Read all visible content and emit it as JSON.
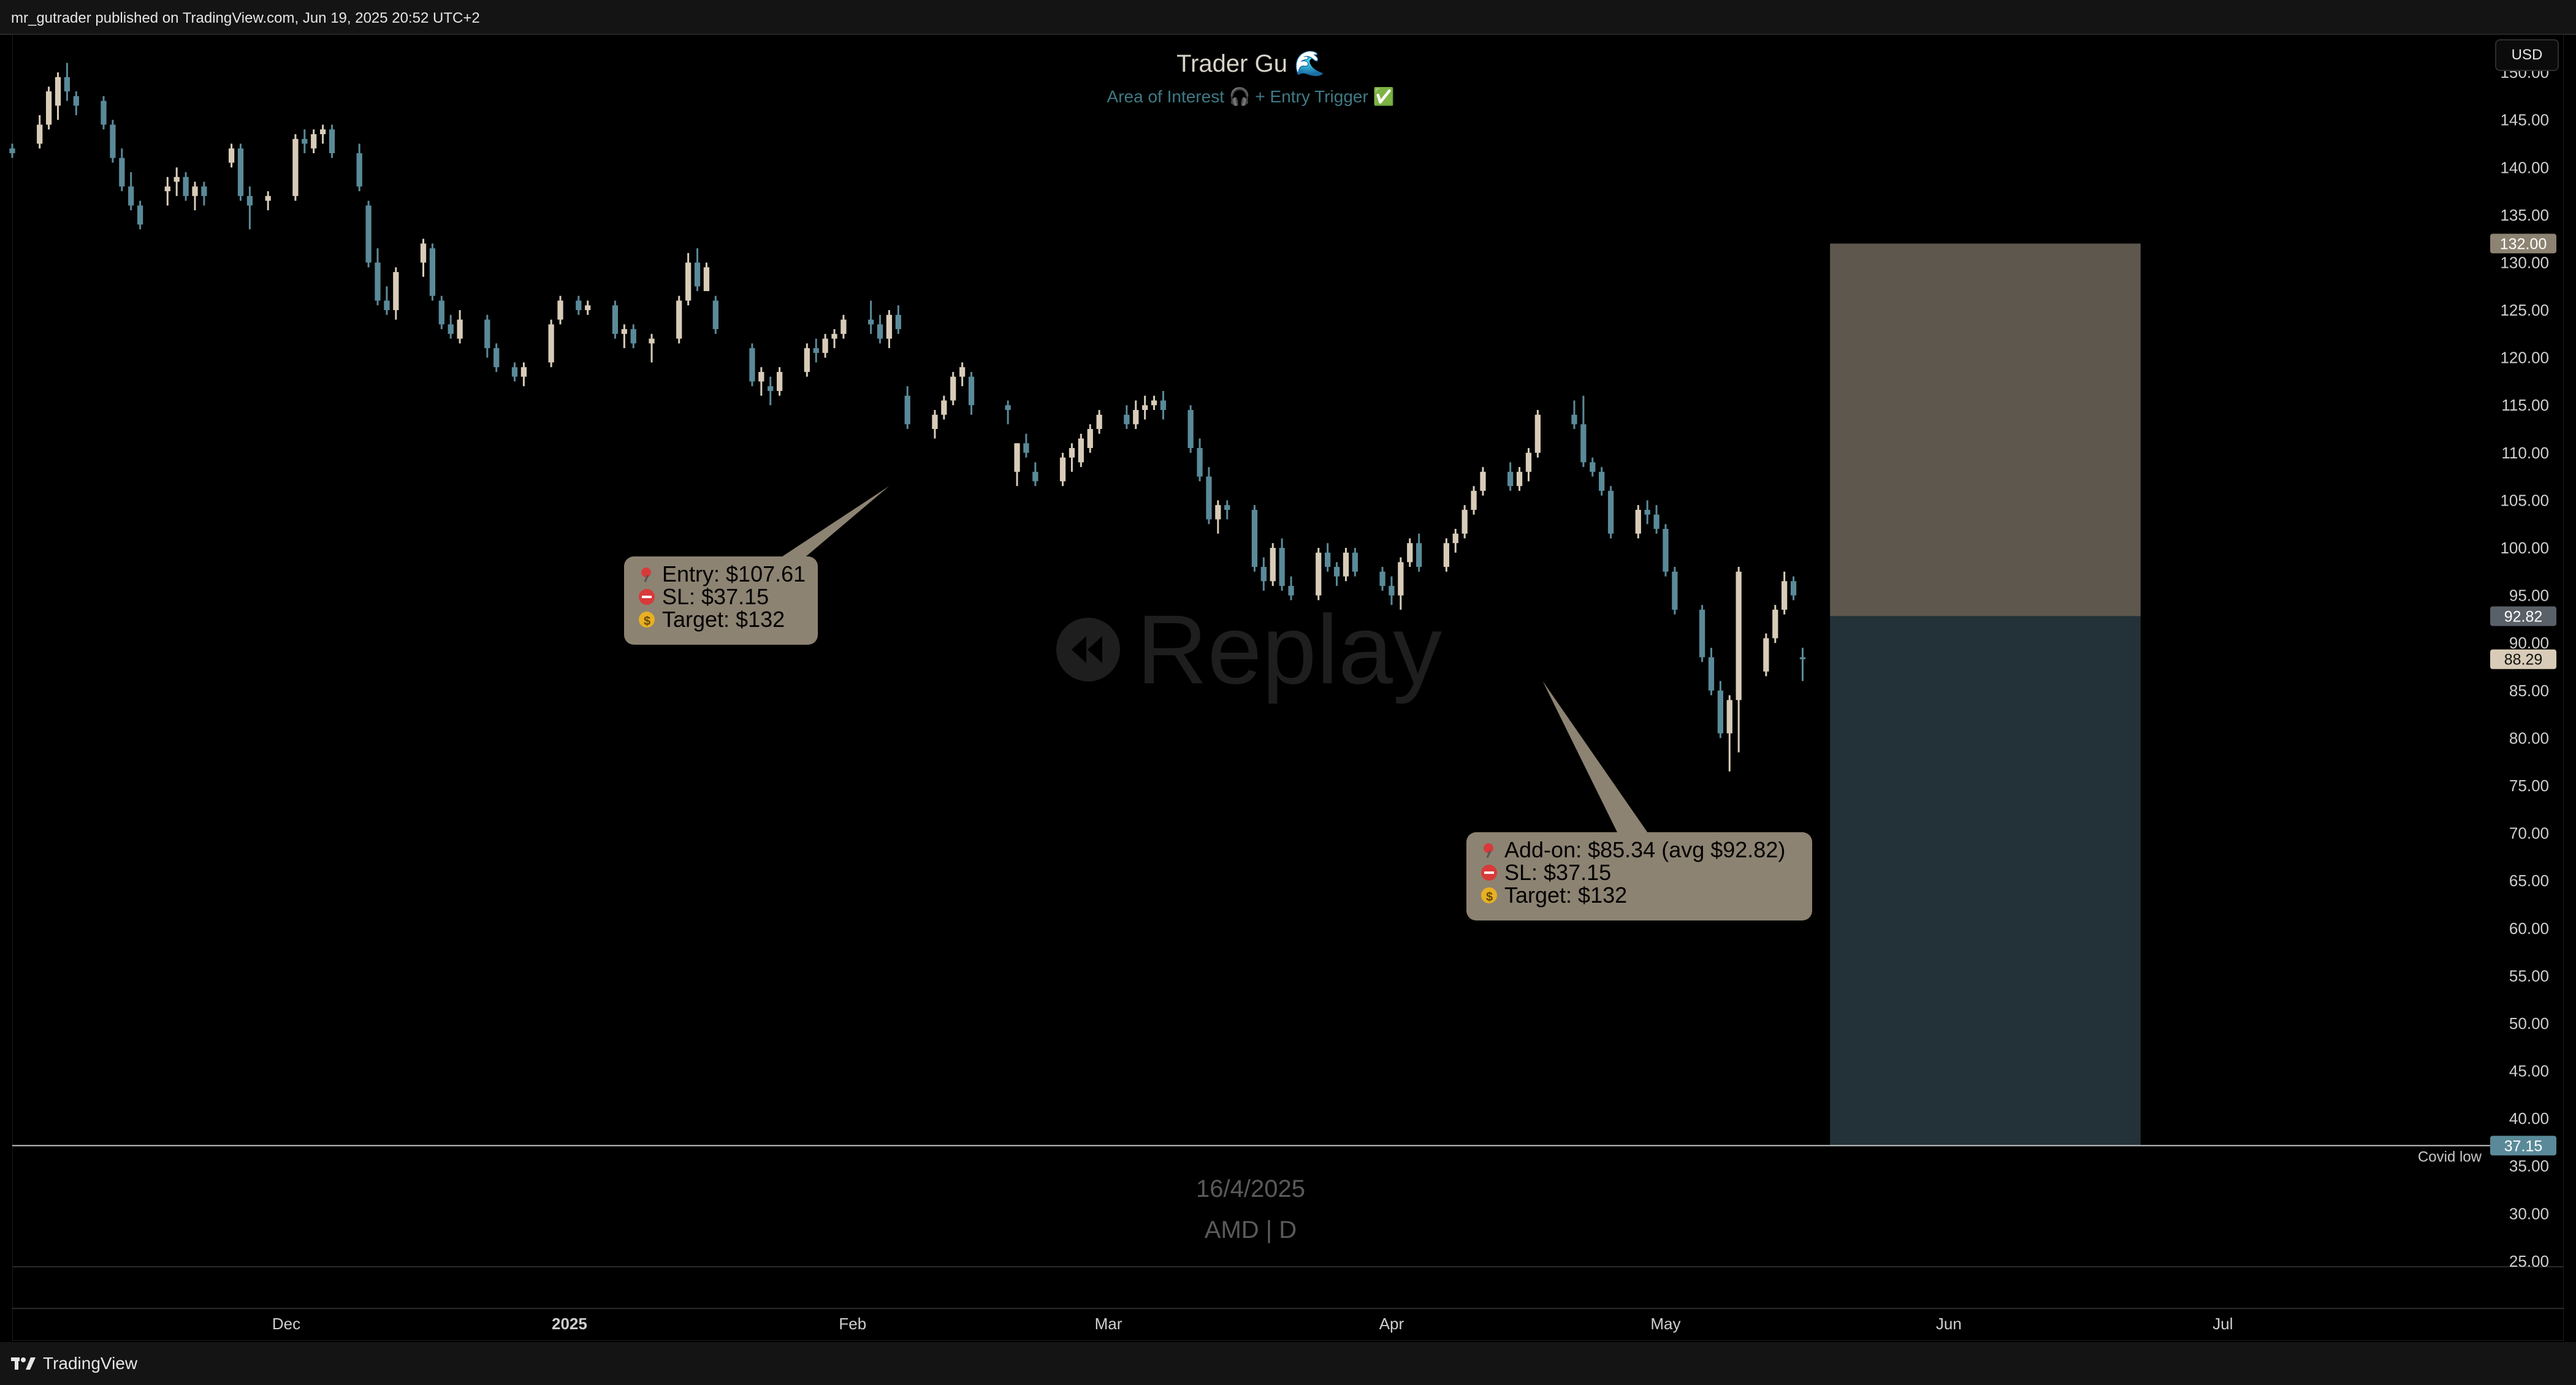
{
  "header": {
    "publish_info": "mr_gutrader published on TradingView.com, Jun 19, 2025 20:52 UTC+2"
  },
  "footer": {
    "brand": "TradingView"
  },
  "toolbar": {
    "currency": "USD"
  },
  "chart_title": "Trader Gu 🌊",
  "chart_subtitle": "Area of Interest 🎧 + Entry Trigger ✅",
  "watermark": {
    "date": "16/4/2025",
    "symbol": "AMD | D",
    "replay": "Replay"
  },
  "annotations": {
    "entry_note": {
      "lines": [
        "Entry: $107.61",
        "SL: $37.15",
        "Target: $132"
      ],
      "icons": [
        "pushpin-icon",
        "no-entry-icon",
        "money-bag-icon"
      ],
      "anchor": {
        "date": "2025-02-05",
        "price": 106.5
      }
    },
    "addon_note": {
      "lines": [
        "Add-on: $85.34 (avg $92.82)",
        "SL: $37.15",
        "Target: $132"
      ],
      "icons": [
        "pushpin-icon",
        "no-entry-icon",
        "money-bag-icon"
      ],
      "anchor": {
        "date": "2025-04-17",
        "price": 86.0
      }
    },
    "covid_low_label": "Covid low"
  },
  "colors": {
    "up": "#d8ccb8",
    "down": "#5a8a99",
    "target_zone": "#5d574d",
    "stop_zone": "#233238",
    "callout": "#8d8372",
    "covid_line": "#c8c8c8"
  },
  "chart_data": {
    "type": "candlestick",
    "symbol": "AMD",
    "timeframe": "D",
    "currency": "USD",
    "y_axis": {
      "range": [
        21.0,
        154.0
      ],
      "ticks": [
        150,
        145,
        140,
        135,
        130,
        125,
        120,
        115,
        110,
        105,
        100,
        95,
        90,
        85,
        80,
        75,
        70,
        65,
        60,
        55,
        50,
        45,
        40,
        35,
        30,
        25
      ],
      "tick_labels": [
        "150.00",
        "145.00",
        "140.00",
        "135.00",
        "130.00",
        "125.00",
        "120.00",
        "115.00",
        "110.00",
        "105.00",
        "100.00",
        "95.00",
        "90.00",
        "85.00",
        "80.00",
        "75.00",
        "70.00",
        "65.00",
        "60.00",
        "55.00",
        "50.00",
        "45.00",
        "40.00",
        "35.00",
        "30.00",
        "25.00"
      ]
    },
    "x_axis": {
      "range": [
        "2024-11-01",
        "2025-07-30"
      ],
      "tick_dates": [
        "2024-12-01",
        "2025-01-01",
        "2025-02-01",
        "2025-03-01",
        "2025-04-01",
        "2025-05-01",
        "2025-06-01",
        "2025-07-01"
      ],
      "tick_labels": [
        "Dec",
        "2025",
        "Feb",
        "Mar",
        "Apr",
        "May",
        "Jun",
        "Jul"
      ],
      "bold_labels": [
        "2025"
      ]
    },
    "price_labels": [
      {
        "value": "132.00",
        "price": 132.0,
        "color": "#8d8372"
      },
      {
        "value": "92.82",
        "price": 92.82,
        "color": "#5a6068"
      },
      {
        "value": "88.29",
        "price": 88.29,
        "color": "#d8ccb8"
      },
      {
        "value": "37.15",
        "price": 37.15,
        "color": "#5a8a99"
      }
    ],
    "position": {
      "start": "2025-05-19",
      "end": "2025-06-22",
      "entry": 92.82,
      "target": 132.0,
      "stop": 37.15
    },
    "horizontal_line": {
      "price": 37.15,
      "label": "Covid low"
    },
    "candles": [
      [
        "2024-11-01",
        142.0,
        142.5,
        141.0,
        141.5
      ],
      [
        "2024-11-04",
        142.5,
        145.5,
        142.0,
        144.5
      ],
      [
        "2024-11-05",
        144.5,
        148.5,
        144.0,
        148.0
      ],
      [
        "2024-11-06",
        146.5,
        150.0,
        145.0,
        149.5
      ],
      [
        "2024-11-07",
        149.5,
        151.0,
        147.0,
        148.0
      ],
      [
        "2024-11-08",
        147.5,
        148.0,
        145.5,
        146.5
      ],
      [
        "2024-11-11",
        147.0,
        147.5,
        144.0,
        144.5
      ],
      [
        "2024-11-12",
        144.5,
        145.0,
        140.5,
        141.0
      ],
      [
        "2024-11-13",
        141.0,
        142.0,
        137.5,
        138.0
      ],
      [
        "2024-11-14",
        138.0,
        139.5,
        135.5,
        136.0
      ],
      [
        "2024-11-15",
        136.0,
        136.5,
        133.5,
        134.0
      ],
      [
        "2024-11-18",
        137.5,
        139.0,
        136.0,
        138.0
      ],
      [
        "2024-11-19",
        138.5,
        140.0,
        137.0,
        139.0
      ],
      [
        "2024-11-20",
        139.0,
        139.5,
        136.5,
        137.0
      ],
      [
        "2024-11-21",
        137.0,
        138.5,
        135.5,
        138.0
      ],
      [
        "2024-11-22",
        138.0,
        138.5,
        136.0,
        137.0
      ],
      [
        "2024-11-25",
        140.5,
        142.5,
        140.0,
        142.0
      ],
      [
        "2024-11-26",
        142.0,
        142.5,
        136.5,
        137.0
      ],
      [
        "2024-11-27",
        137.0,
        138.0,
        133.5,
        136.0
      ],
      [
        "2024-11-29",
        136.5,
        137.5,
        135.5,
        137.0
      ],
      [
        "2024-12-02",
        137.0,
        143.5,
        136.5,
        143.0
      ],
      [
        "2024-12-03",
        143.0,
        144.0,
        141.5,
        142.5
      ],
      [
        "2024-12-04",
        142.0,
        144.0,
        141.5,
        143.5
      ],
      [
        "2024-12-05",
        143.5,
        144.5,
        142.5,
        144.0
      ],
      [
        "2024-12-06",
        144.0,
        144.5,
        141.0,
        141.5
      ],
      [
        "2024-12-09",
        141.5,
        142.5,
        137.5,
        138.0
      ],
      [
        "2024-12-10",
        136.0,
        136.5,
        129.5,
        130.0
      ],
      [
        "2024-12-11",
        130.0,
        131.5,
        125.5,
        126.0
      ],
      [
        "2024-12-12",
        126.0,
        127.5,
        124.5,
        125.0
      ],
      [
        "2024-12-13",
        125.0,
        129.5,
        124.0,
        129.0
      ],
      [
        "2024-12-16",
        130.0,
        132.5,
        128.5,
        132.0
      ],
      [
        "2024-12-17",
        131.5,
        132.0,
        126.0,
        126.5
      ],
      [
        "2024-12-18",
        126.0,
        126.5,
        123.0,
        123.5
      ],
      [
        "2024-12-19",
        123.5,
        124.5,
        122.0,
        122.5
      ],
      [
        "2024-12-20",
        122.0,
        125.0,
        121.5,
        124.0
      ],
      [
        "2024-12-23",
        124.0,
        124.5,
        120.0,
        121.0
      ],
      [
        "2024-12-24",
        121.0,
        121.5,
        118.5,
        119.0
      ],
      [
        "2024-12-26",
        119.0,
        119.5,
        117.5,
        118.0
      ],
      [
        "2024-12-27",
        118.0,
        119.5,
        117.0,
        119.0
      ],
      [
        "2024-12-30",
        119.5,
        124.0,
        119.0,
        123.5
      ],
      [
        "2024-12-31",
        124.0,
        126.5,
        123.5,
        126.0
      ],
      [
        "2025-01-02",
        126.0,
        126.5,
        124.5,
        125.0
      ],
      [
        "2025-01-03",
        125.0,
        126.0,
        124.5,
        125.5
      ],
      [
        "2025-01-06",
        125.5,
        126.0,
        122.0,
        122.5
      ],
      [
        "2025-01-07",
        122.5,
        123.5,
        121.0,
        123.0
      ],
      [
        "2025-01-08",
        123.0,
        123.5,
        121.0,
        121.5
      ],
      [
        "2025-01-10",
        121.5,
        122.5,
        119.5,
        122.0
      ],
      [
        "2025-01-13",
        122.0,
        126.5,
        121.5,
        126.0
      ],
      [
        "2025-01-14",
        126.0,
        131.0,
        125.5,
        130.0
      ],
      [
        "2025-01-15",
        130.0,
        131.5,
        127.0,
        127.5
      ],
      [
        "2025-01-16",
        127.0,
        130.0,
        127.5,
        129.5
      ],
      [
        "2025-01-17",
        126.0,
        126.5,
        122.5,
        123.0
      ],
      [
        "2025-01-21",
        121.0,
        121.5,
        117.0,
        117.5
      ],
      [
        "2025-01-22",
        117.5,
        119.0,
        116.0,
        118.5
      ],
      [
        "2025-01-23",
        117.0,
        118.0,
        115.0,
        116.5
      ],
      [
        "2025-01-24",
        116.5,
        119.0,
        116.0,
        118.5
      ],
      [
        "2025-01-27",
        118.5,
        121.5,
        118.0,
        121.0
      ],
      [
        "2025-01-28",
        121.0,
        122.0,
        119.5,
        120.5
      ],
      [
        "2025-01-29",
        120.5,
        122.5,
        120.0,
        122.0
      ],
      [
        "2025-01-30",
        122.0,
        123.0,
        121.0,
        122.5
      ],
      [
        "2025-01-31",
        122.5,
        124.5,
        122.0,
        124.0
      ],
      [
        "2025-02-03",
        124.0,
        126.0,
        122.5,
        123.5
      ],
      [
        "2025-02-04",
        123.5,
        124.5,
        121.5,
        122.0
      ],
      [
        "2025-02-05",
        122.0,
        125.0,
        121.0,
        124.5
      ],
      [
        "2025-02-06",
        124.5,
        125.5,
        122.5,
        123.0
      ],
      [
        "2025-02-07",
        116.0,
        117.0,
        112.5,
        113.0
      ],
      [
        "2025-02-10",
        112.5,
        114.5,
        111.5,
        114.0
      ],
      [
        "2025-02-11",
        114.0,
        116.0,
        113.5,
        115.5
      ],
      [
        "2025-02-12",
        115.5,
        118.5,
        115.0,
        118.0
      ],
      [
        "2025-02-13",
        118.0,
        119.5,
        117.0,
        119.0
      ],
      [
        "2025-02-14",
        118.0,
        118.5,
        114.0,
        115.0
      ],
      [
        "2025-02-18",
        115.0,
        115.5,
        113.0,
        114.5
      ],
      [
        "2025-02-19",
        108.0,
        111.0,
        106.5,
        111.0
      ],
      [
        "2025-02-20",
        111.0,
        112.0,
        109.5,
        110.0
      ],
      [
        "2025-02-21",
        108.0,
        109.0,
        106.5,
        107.0
      ],
      [
        "2025-02-24",
        107.0,
        110.0,
        106.5,
        109.5
      ],
      [
        "2025-02-25",
        109.5,
        111.0,
        108.0,
        110.5
      ],
      [
        "2025-02-26",
        109.0,
        112.0,
        108.5,
        111.5
      ],
      [
        "2025-02-27",
        110.5,
        113.0,
        110.0,
        112.5
      ],
      [
        "2025-02-28",
        112.5,
        114.5,
        112.0,
        114.0
      ],
      [
        "2025-03-03",
        114.0,
        115.0,
        112.5,
        113.0
      ],
      [
        "2025-03-04",
        113.0,
        115.5,
        112.5,
        114.5
      ],
      [
        "2025-03-05",
        114.5,
        116.0,
        113.5,
        115.0
      ],
      [
        "2025-03-06",
        115.0,
        116.0,
        114.5,
        115.5
      ],
      [
        "2025-03-07",
        115.5,
        116.5,
        113.5,
        114.5
      ],
      [
        "2025-03-10",
        114.5,
        115.0,
        110.0,
        110.5
      ],
      [
        "2025-03-11",
        110.5,
        111.5,
        107.0,
        107.5
      ],
      [
        "2025-03-12",
        107.5,
        108.5,
        102.5,
        103.0
      ],
      [
        "2025-03-13",
        103.0,
        105.0,
        101.5,
        104.5
      ],
      [
        "2025-03-14",
        104.5,
        105.0,
        103.0,
        104.0
      ],
      [
        "2025-03-17",
        104.0,
        104.5,
        97.5,
        98.0
      ],
      [
        "2025-03-18",
        98.0,
        99.0,
        95.5,
        96.5
      ],
      [
        "2025-03-19",
        96.5,
        100.5,
        96.0,
        100.0
      ],
      [
        "2025-03-20",
        100.0,
        101.0,
        95.5,
        96.0
      ],
      [
        "2025-03-21",
        96.0,
        97.0,
        94.5,
        95.0
      ],
      [
        "2025-03-24",
        95.0,
        100.0,
        94.5,
        99.5
      ],
      [
        "2025-03-25",
        99.5,
        100.5,
        97.5,
        98.0
      ],
      [
        "2025-03-26",
        98.0,
        98.5,
        96.0,
        97.0
      ],
      [
        "2025-03-27",
        97.0,
        100.0,
        96.5,
        99.5
      ],
      [
        "2025-03-28",
        99.5,
        100.0,
        97.0,
        97.5
      ],
      [
        "2025-03-31",
        97.5,
        98.0,
        95.5,
        96.0
      ],
      [
        "2025-04-01",
        96.0,
        97.0,
        94.0,
        95.0
      ],
      [
        "2025-04-02",
        95.0,
        99.0,
        93.5,
        98.5
      ],
      [
        "2025-04-03",
        98.5,
        101.0,
        98.0,
        100.5
      ],
      [
        "2025-04-04",
        100.5,
        101.5,
        97.5,
        98.0
      ],
      [
        "2025-04-07",
        98.0,
        101.0,
        97.5,
        100.5
      ],
      [
        "2025-04-08",
        100.5,
        102.0,
        99.5,
        101.5
      ],
      [
        "2025-04-09",
        101.5,
        104.5,
        101.0,
        104.0
      ],
      [
        "2025-04-10",
        104.0,
        106.5,
        103.5,
        106.0
      ],
      [
        "2025-04-11",
        106.0,
        108.5,
        105.5,
        108.0
      ],
      [
        "2025-04-14",
        108.0,
        109.0,
        106.0,
        106.5
      ],
      [
        "2025-04-15",
        106.5,
        108.5,
        106.0,
        108.0
      ],
      [
        "2025-04-16",
        108.0,
        110.5,
        107.0,
        110.0
      ],
      [
        "2025-04-17",
        110.0,
        114.5,
        109.5,
        114.0
      ],
      [
        "2025-04-21",
        114.0,
        115.5,
        112.5,
        113.0
      ],
      [
        "2025-04-22",
        113.0,
        116.0,
        108.5,
        109.0
      ],
      [
        "2025-04-23",
        109.0,
        109.5,
        107.5,
        108.0
      ],
      [
        "2025-04-24",
        108.0,
        108.5,
        105.5,
        106.0
      ],
      [
        "2025-04-25",
        106.0,
        106.5,
        101.0,
        101.5
      ],
      [
        "2025-04-28",
        101.5,
        104.5,
        101.0,
        104.0
      ],
      [
        "2025-04-29",
        104.0,
        105.0,
        102.5,
        103.5
      ],
      [
        "2025-04-30",
        103.5,
        104.5,
        101.5,
        102.0
      ],
      [
        "2025-05-01",
        102.0,
        102.5,
        97.0,
        97.5
      ],
      [
        "2025-05-02",
        97.5,
        98.0,
        93.0,
        93.5
      ],
      [
        "2025-05-05",
        93.5,
        94.0,
        88.0,
        88.5
      ],
      [
        "2025-05-06",
        88.5,
        89.5,
        84.5,
        85.0
      ],
      [
        "2025-05-07",
        85.0,
        86.0,
        80.0,
        80.5
      ],
      [
        "2025-05-08",
        80.5,
        84.5,
        76.5,
        84.0
      ],
      [
        "2025-05-09",
        84.0,
        98.0,
        78.5,
        97.5
      ],
      [
        "2025-05-12",
        87.0,
        91.0,
        86.5,
        90.5
      ],
      [
        "2025-05-13",
        90.5,
        94.0,
        90.0,
        93.5
      ],
      [
        "2025-05-14",
        93.5,
        97.5,
        93.0,
        96.5
      ],
      [
        "2025-05-15",
        96.5,
        97.0,
        94.5,
        95.0
      ],
      [
        "2025-05-16",
        88.5,
        89.5,
        86.0,
        88.29
      ]
    ]
  }
}
